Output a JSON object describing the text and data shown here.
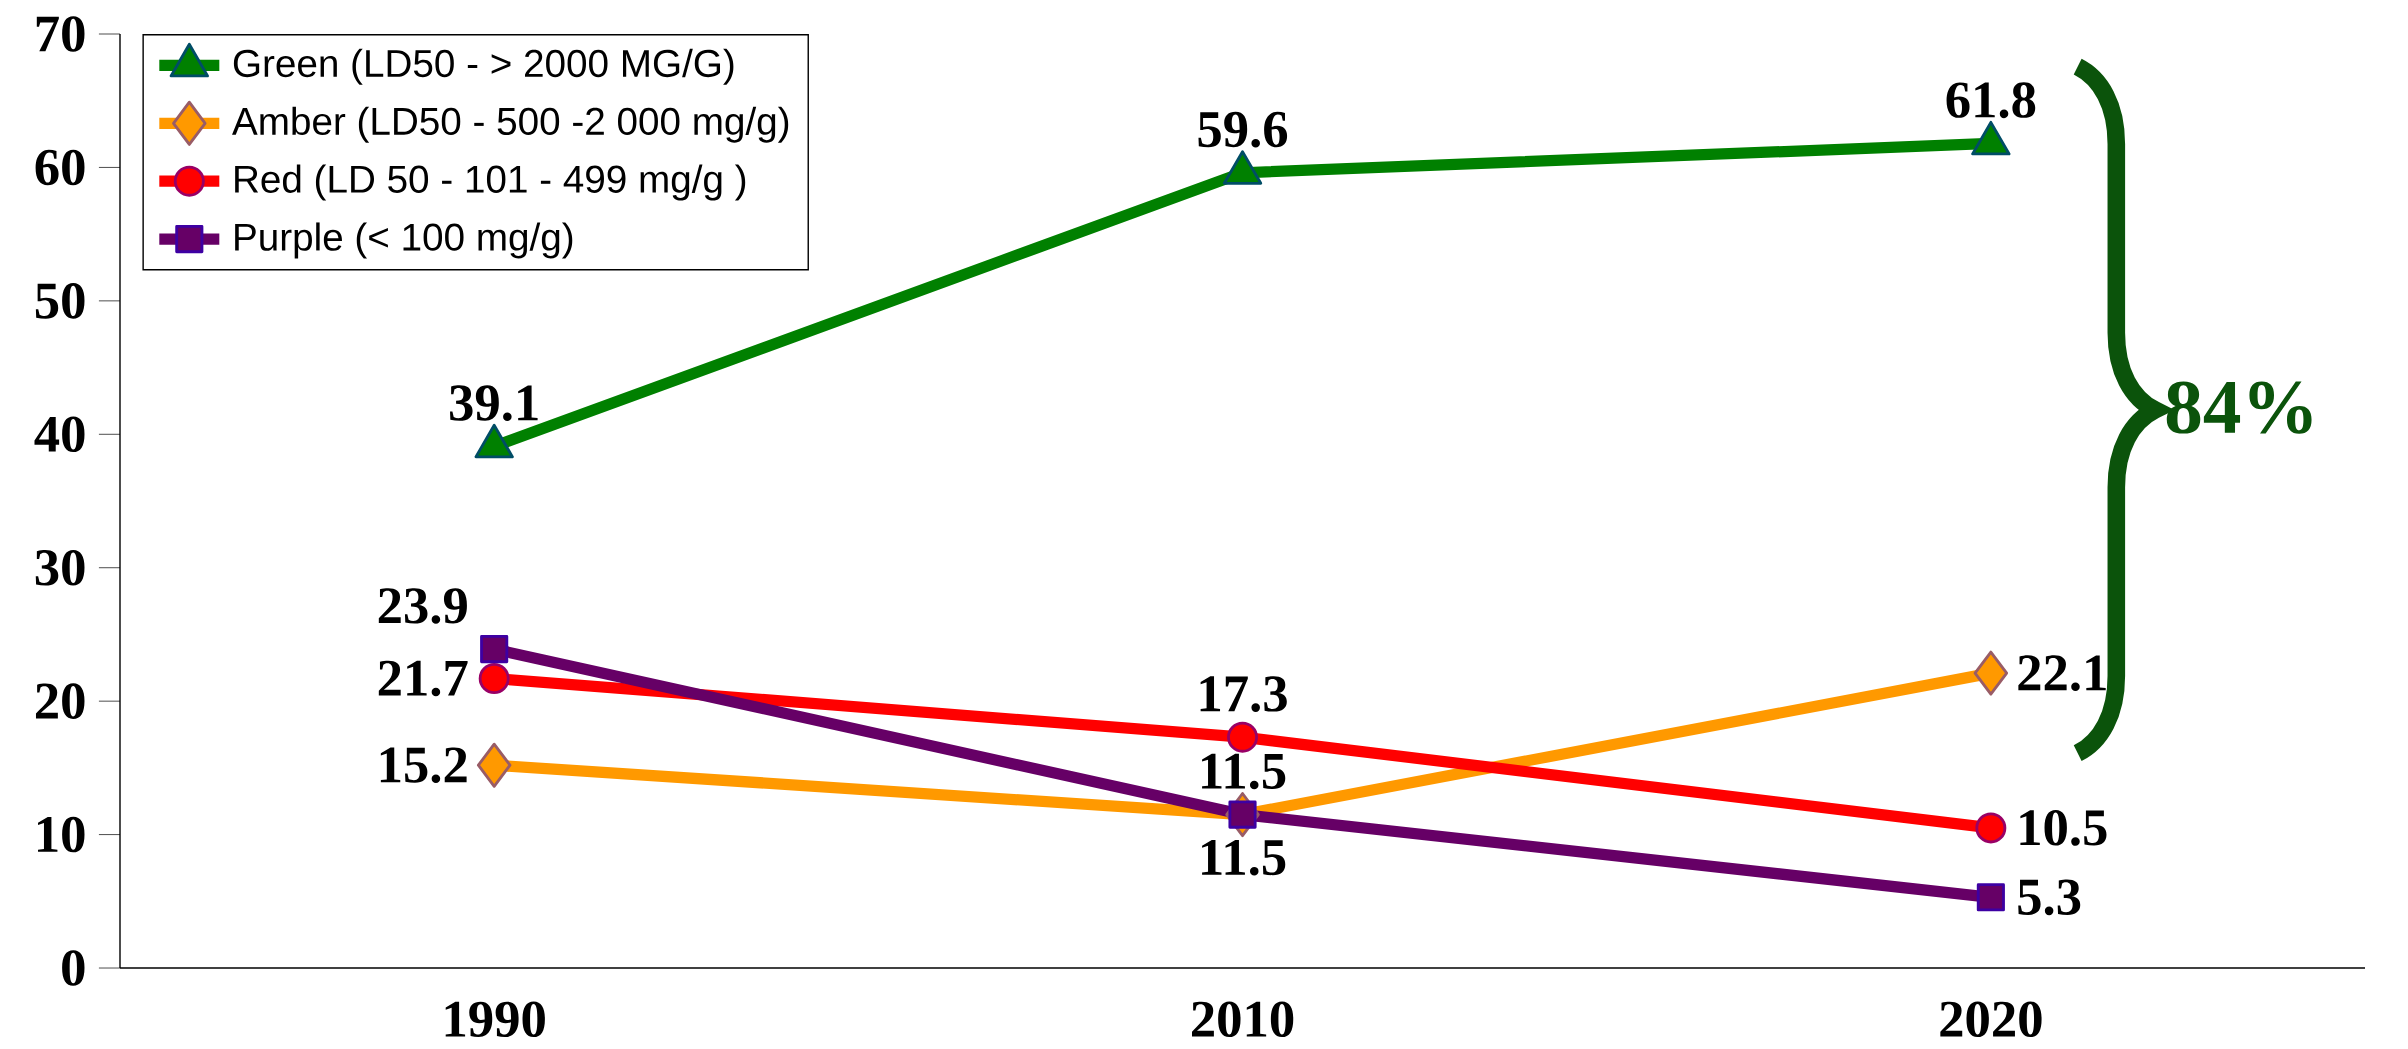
{
  "chart_data": {
    "type": "line",
    "categories": [
      "1990",
      "2010",
      "2020"
    ],
    "series": [
      {
        "name": "Green (LD50 - > 2000 MG/G)",
        "color": "#008000",
        "marker": "triangle",
        "values": [
          39.1,
          59.6,
          61.8
        ]
      },
      {
        "name": "Amber (LD50 - 500 -2 000 mg/g)",
        "color": "#ff9900",
        "marker": "diamond",
        "values": [
          15.2,
          11.5,
          22.1
        ]
      },
      {
        "name": "Red (LD 50 - 101 - 499 mg/g )",
        "color": "#ff0000",
        "marker": "circle",
        "values": [
          21.7,
          17.3,
          10.5
        ]
      },
      {
        "name": "Purple (< 100 mg/g)",
        "color": "#660066",
        "marker": "square",
        "values": [
          23.9,
          11.5,
          5.3
        ]
      }
    ],
    "ylim": [
      0,
      70
    ],
    "yticks": [
      0,
      10,
      20,
      30,
      40,
      50,
      60,
      70
    ],
    "grid": false,
    "legend": "top left",
    "data_labels": true,
    "annotations": [
      "84%"
    ]
  }
}
